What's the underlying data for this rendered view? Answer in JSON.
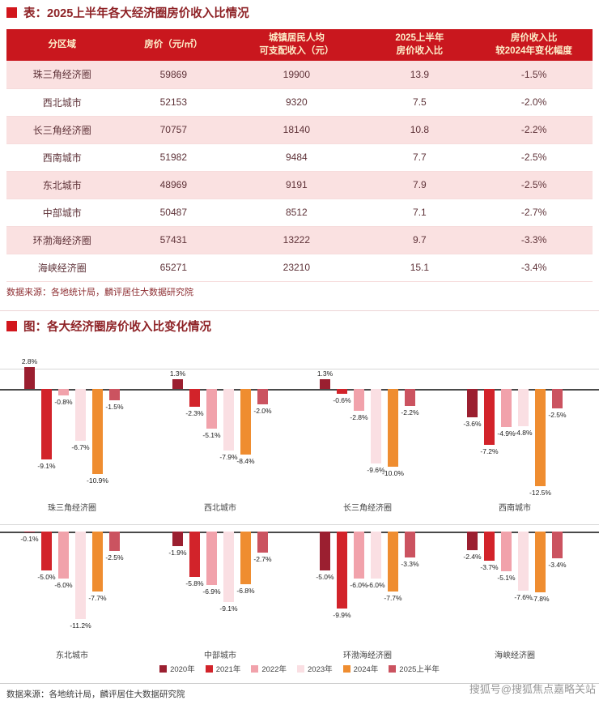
{
  "page": {
    "table_title": "表：2025上半年各大经济圈房价收入比情况",
    "chart_title": "图：各大经济圈房价收入比变化情况",
    "source_note": "数据来源：各地统计局，麟评居住大数据研究院",
    "source_note2": "数据来源：各地统计局，麟评居住大数据研究院",
    "watermark": "搜狐号@搜狐焦点嘉略关站"
  },
  "colors": {
    "accent_red": "#c9171e",
    "bullet_red": "#d2161c",
    "header_text": "#fdeec9",
    "row_pink": "#fae1e1",
    "table_text": "#5e3238",
    "title_text": "#8e2226"
  },
  "table": {
    "columns": [
      "分区域",
      "房价（元/㎡）",
      "城镇居民人均\n可支配收入（元）",
      "2025上半年\n房价收入比",
      "房价收入比\n较2024年变化幅度"
    ],
    "rows": [
      [
        "珠三角经济圈",
        "59869",
        "19900",
        "13.9",
        "-1.5%"
      ],
      [
        "西北城市",
        "52153",
        "9320",
        "7.5",
        "-2.0%"
      ],
      [
        "长三角经济圈",
        "70757",
        "18140",
        "10.8",
        "-2.2%"
      ],
      [
        "西南城市",
        "51982",
        "9484",
        "7.7",
        "-2.5%"
      ],
      [
        "东北城市",
        "48969",
        "9191",
        "7.9",
        "-2.5%"
      ],
      [
        "中部城市",
        "50487",
        "8512",
        "7.1",
        "-2.7%"
      ],
      [
        "环渤海经济圈",
        "57431",
        "13222",
        "9.7",
        "-3.3%"
      ],
      [
        "海峡经济圈",
        "65271",
        "23210",
        "15.1",
        "-3.4%"
      ]
    ]
  },
  "chart_data": {
    "type": "bar",
    "title": "各大经济圈房价收入比变化情况",
    "unit": "%",
    "ylim": [
      -13,
      3
    ],
    "legend_position": "bottom",
    "series_labels": [
      "2020年",
      "2021年",
      "2022年",
      "2023年",
      "2024年",
      "2025上半年"
    ],
    "series_colors": [
      "#9b1f30",
      "#d2232a",
      "#f1a2ab",
      "#fadfe3",
      "#ef8d30",
      "#cb5360"
    ],
    "groups": [
      {
        "name": "珠三角经济圈",
        "values": [
          2.8,
          -9.1,
          -0.8,
          -6.7,
          -10.9,
          -1.5
        ]
      },
      {
        "name": "西北城市",
        "values": [
          1.3,
          -2.3,
          -5.1,
          -7.9,
          -8.4,
          -2.0
        ]
      },
      {
        "name": "长三角经济圈",
        "values": [
          1.3,
          -0.6,
          -2.8,
          -9.6,
          -10.0,
          -2.2
        ]
      },
      {
        "name": "西南城市",
        "values": [
          -3.6,
          -7.2,
          -4.9,
          -4.8,
          -12.5,
          -2.5
        ]
      },
      {
        "name": "东北城市",
        "values": [
          -0.1,
          -5.0,
          -6.0,
          -11.2,
          -7.7,
          -2.5
        ]
      },
      {
        "name": "中部城市",
        "values": [
          -1.9,
          -5.8,
          -6.9,
          -9.1,
          -6.8,
          -2.7
        ]
      },
      {
        "name": "环渤海经济圈",
        "values": [
          -5.0,
          -9.9,
          -6.0,
          -6.0,
          -7.7,
          -3.3
        ]
      },
      {
        "name": "海峡经济圈",
        "values": [
          -2.4,
          -3.7,
          -5.1,
          -7.6,
          -7.8,
          -3.4
        ]
      }
    ]
  }
}
